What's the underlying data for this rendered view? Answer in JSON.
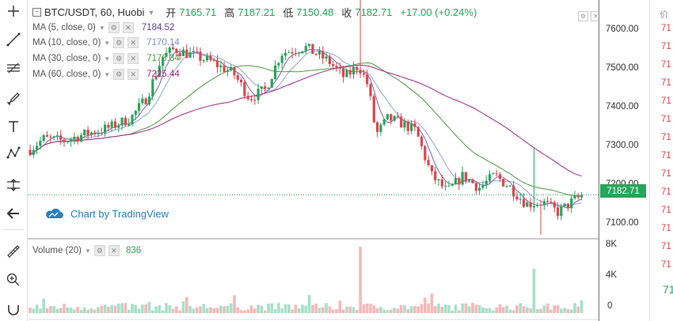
{
  "header": {
    "symbol": "BTC/USDT, 60, Huobi",
    "open_label": "开",
    "open": "7165.71",
    "high_label": "高",
    "high": "7187.21",
    "low_label": "低",
    "low": "7150.48",
    "close_label": "收",
    "close": "7182.71",
    "change": "+17.00 (+0.24%)"
  },
  "indicators": [
    {
      "label": "MA (5, close, 0)",
      "value": "7184.52",
      "color": "#5b3fa0"
    },
    {
      "label": "MA (10, close, 0)",
      "value": "7170.14",
      "color": "#7a8ec8"
    },
    {
      "label": "MA (30, close, 0)",
      "value": "7176.34",
      "color": "#4f9a44"
    },
    {
      "label": "MA (60, close, 0)",
      "value": "7225.44",
      "color": "#a52a8c"
    }
  ],
  "volume": {
    "label": "Volume (20)",
    "value": "836"
  },
  "watermark": "Chart by TradingView",
  "price_axis": [
    "7600.00",
    "7500.00",
    "7400.00",
    "7300.00",
    "7200.00",
    "7100.00"
  ],
  "volume_axis": [
    "8K",
    "4K",
    "0"
  ],
  "last_price": "7182.71",
  "orderbook": {
    "header": "价",
    "prices": [
      "71",
      "71",
      "71",
      "71",
      "71",
      "71",
      "71",
      "71",
      "71",
      "71",
      "71",
      "71",
      "71",
      "71",
      "71",
      "71"
    ],
    "mid": "71"
  },
  "colors": {
    "up": "#26a65b",
    "down": "#e0454e",
    "up_fill": "#a6e0c8",
    "down_fill": "#f6b8b8"
  },
  "toolbar_icons": [
    "crosshair-icon",
    "trend-line-icon",
    "fib-icon",
    "brush-icon",
    "text-icon",
    "pattern-icon",
    "measure-icon",
    "back-arrow-icon",
    "ruler-icon",
    "zoom-in-icon"
  ],
  "chart_data": {
    "type": "candlestick",
    "ylim": [
      7075,
      7660
    ],
    "ma_series": [
      {
        "name": "MA (5, close, 0)",
        "current": 7184.52
      },
      {
        "name": "MA (10, close, 0)",
        "current": 7170.14
      },
      {
        "name": "MA (30, close, 0)",
        "current": 7176.34
      },
      {
        "name": "MA (60, close, 0)",
        "current": 7225.44
      }
    ],
    "last": 7182.71,
    "volume_ylim": [
      0,
      8000
    ],
    "volume_current": 836
  }
}
